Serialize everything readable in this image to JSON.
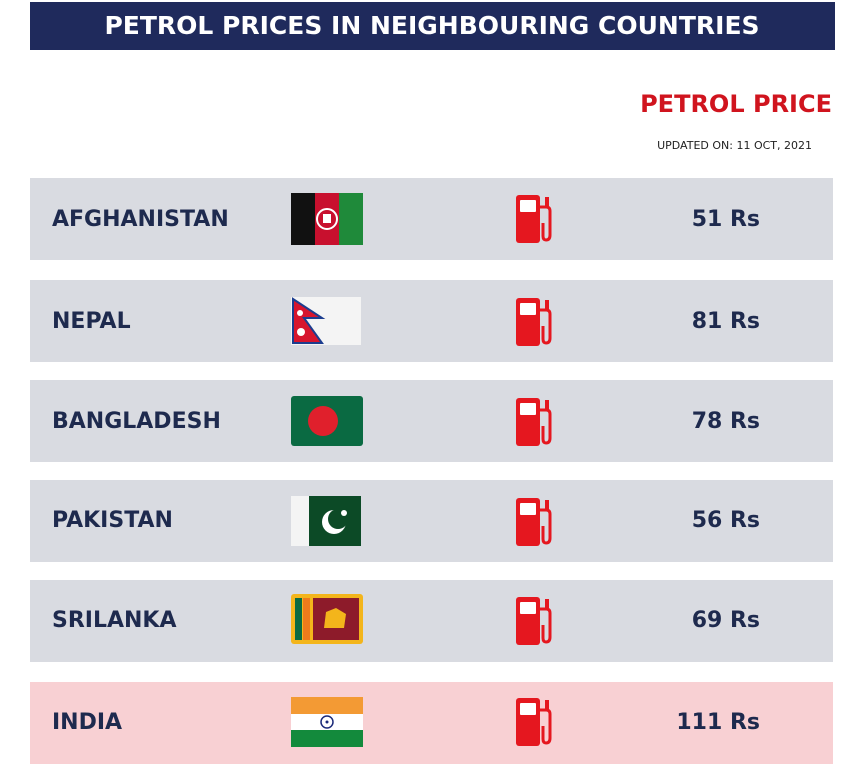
{
  "header": {
    "title": "PETROL PRICES IN NEIGHBOURING COUNTRIES",
    "subtitle": "PETROL PRICE",
    "updated": "UPDATED ON: 11 OCT, 2021"
  },
  "table": {
    "rows": [
      {
        "country": "AFGHANISTAN",
        "price": "51 Rs"
      },
      {
        "country": "NEPAL",
        "price": "81 Rs"
      },
      {
        "country": "BANGLADESH",
        "price": "78 Rs"
      },
      {
        "country": "PAKISTAN",
        "price": "56 Rs"
      },
      {
        "country": "SRILANKA",
        "price": "69 Rs"
      },
      {
        "country": "INDIA",
        "price": "111 Rs"
      }
    ]
  }
}
